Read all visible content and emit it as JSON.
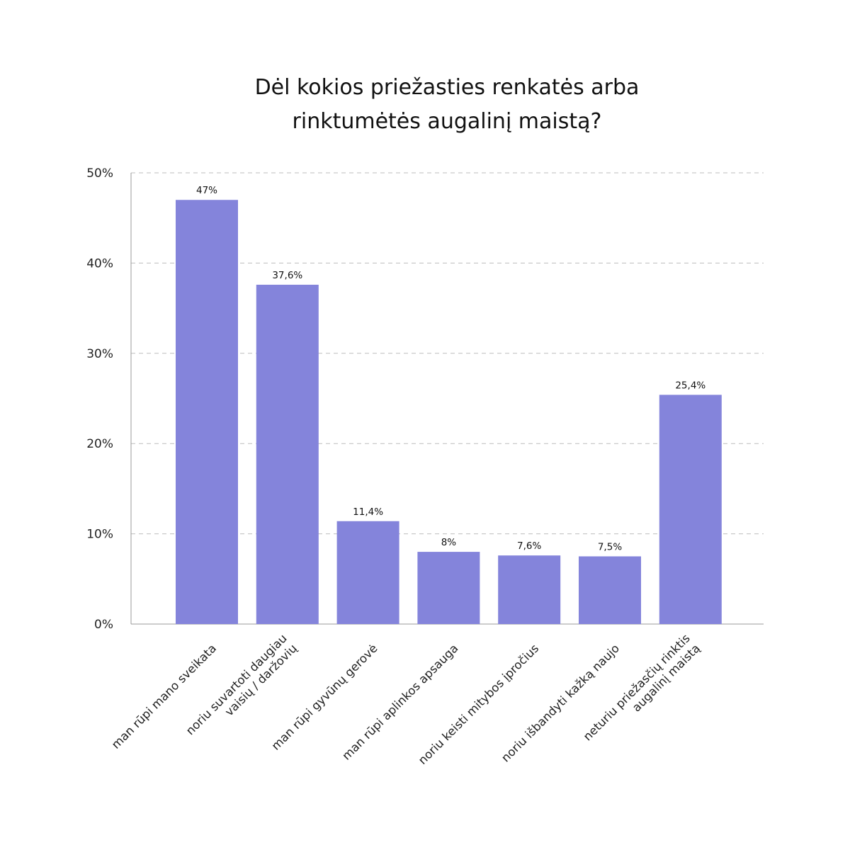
{
  "chart_data": {
    "type": "bar",
    "title_lines": [
      "Dėl kokios priežasties renkatės arba",
      "rinktumėtės augalinį maistą?"
    ],
    "categories": [
      [
        "man rūpi mano sveikata"
      ],
      [
        "noriu suvartoti daugiau",
        "vaisių / daržovių"
      ],
      [
        "man rūpi gyvūnų gerovė"
      ],
      [
        "man rūpi aplinkos apsauga"
      ],
      [
        "noriu keisti mitybos įpročius"
      ],
      [
        "noriu išbandyti kažką naujo"
      ],
      [
        "neturiu priežasčių rinktis",
        "augalinį maistą"
      ]
    ],
    "values": [
      47,
      37.6,
      11.4,
      8,
      7.6,
      7.5,
      25.4
    ],
    "value_labels": [
      "47%",
      "37,6%",
      "11,4%",
      "8%",
      "7,6%",
      "7,5%",
      "25,4%"
    ],
    "yticks": [
      0,
      10,
      20,
      30,
      40,
      50
    ],
    "ytick_labels": [
      "0%",
      "10%",
      "20%",
      "30%",
      "40%",
      "50%"
    ],
    "ylim": [
      0,
      50
    ],
    "grid": true,
    "bar_color": "#8484db"
  }
}
